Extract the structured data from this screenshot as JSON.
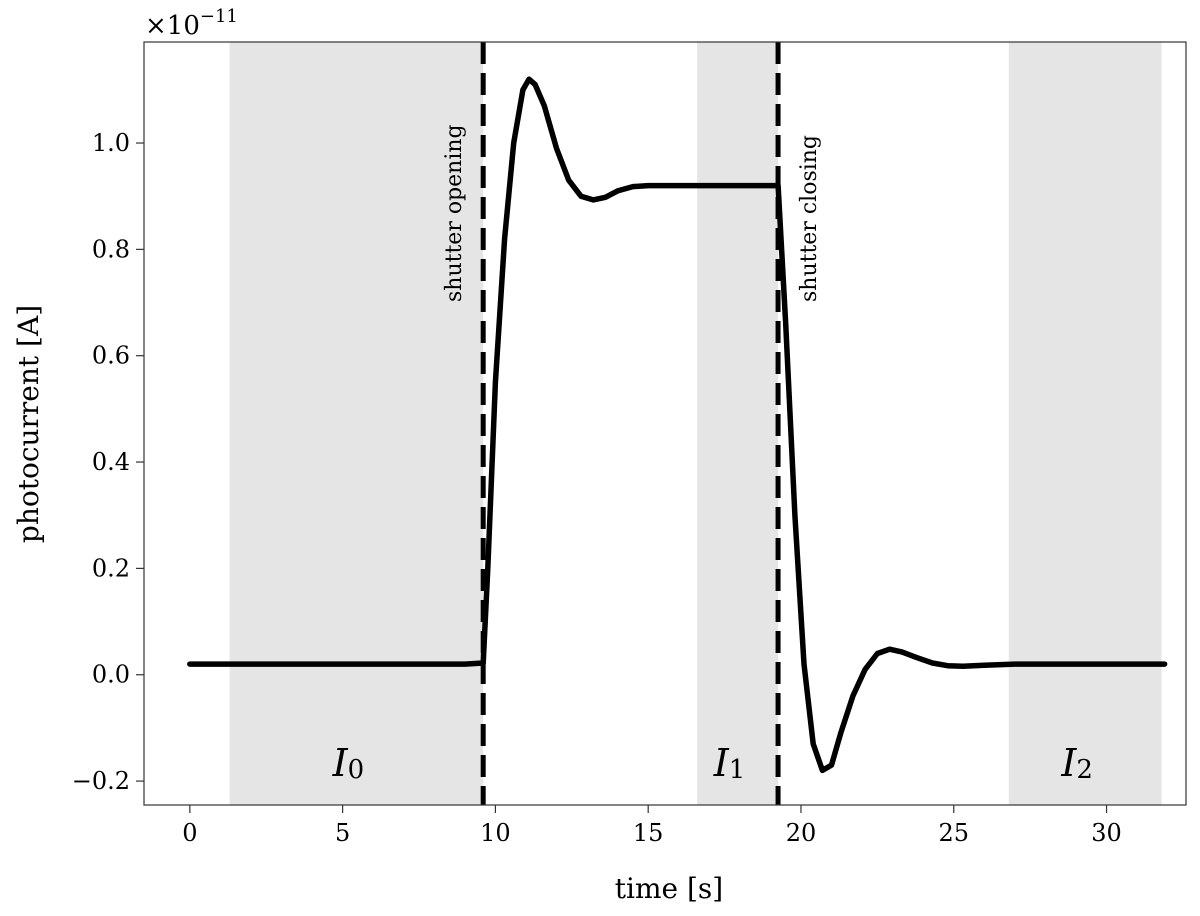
{
  "chart_data": {
    "type": "line",
    "title": "",
    "xlabel": "time [s]",
    "ylabel": "photocurrent [A]",
    "y_multiplier": {
      "base": "×10",
      "exponent": "−11"
    },
    "xlim": [
      -1.5,
      32.6
    ],
    "ylim": [
      -0.245,
      1.19
    ],
    "x_ticks": [
      0,
      5,
      10,
      15,
      20,
      25,
      30
    ],
    "x_tick_labels": [
      "0",
      "5",
      "10",
      "15",
      "20",
      "25",
      "30"
    ],
    "y_ticks": [
      -0.2,
      0.0,
      0.2,
      0.4,
      0.6,
      0.8,
      1.0
    ],
    "y_tick_labels": [
      "−0.2",
      "0.0",
      "0.2",
      "0.4",
      "0.6",
      "0.8",
      "1.0"
    ],
    "grid": false,
    "series": [
      {
        "x": [
          0,
          3,
          6,
          9,
          9.6,
          9.75,
          10.0,
          10.3,
          10.6,
          10.9,
          11.1,
          11.3,
          11.6,
          12.0,
          12.4,
          12.8,
          13.2,
          13.6,
          14.0,
          14.5,
          15.0,
          15.5,
          16.0,
          17.0,
          18.0,
          19.0,
          19.25,
          19.5,
          19.8,
          20.1,
          20.4,
          20.7,
          21.0,
          21.3,
          21.7,
          22.1,
          22.5,
          22.9,
          23.3,
          23.8,
          24.3,
          24.8,
          25.3,
          26.0,
          27.0,
          28.0,
          30.0,
          31.9
        ],
        "y": [
          0.02,
          0.02,
          0.02,
          0.02,
          0.022,
          0.2,
          0.55,
          0.82,
          1.0,
          1.1,
          1.12,
          1.11,
          1.07,
          0.99,
          0.93,
          0.9,
          0.893,
          0.898,
          0.91,
          0.918,
          0.92,
          0.92,
          0.92,
          0.92,
          0.92,
          0.92,
          0.92,
          0.66,
          0.3,
          0.02,
          -0.13,
          -0.18,
          -0.17,
          -0.11,
          -0.04,
          0.01,
          0.04,
          0.048,
          0.043,
          0.032,
          0.022,
          0.017,
          0.016,
          0.018,
          0.02,
          0.02,
          0.02,
          0.02
        ]
      }
    ],
    "shaded_regions": [
      {
        "x0": 1.3,
        "x1": 9.6,
        "label": "I",
        "sub": "0"
      },
      {
        "x0": 16.6,
        "x1": 19.25,
        "label": "I",
        "sub": "1"
      },
      {
        "x0": 26.8,
        "x1": 31.8,
        "label": "I",
        "sub": "2"
      }
    ],
    "vertical_lines": [
      {
        "x": 9.6,
        "style": "dashed",
        "label": "shutter opening",
        "label_side": "left"
      },
      {
        "x": 19.25,
        "style": "dashed",
        "label": "shutter closing",
        "label_side": "right"
      }
    ],
    "colors": {
      "line": "#000000",
      "shade": "#e5e5e5",
      "axis": "#333333"
    }
  }
}
